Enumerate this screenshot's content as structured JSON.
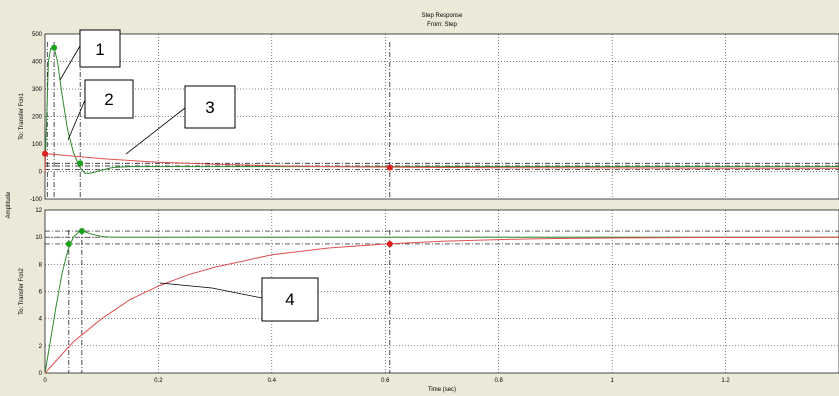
{
  "chart_data": {
    "type": "line",
    "title": "Step Response",
    "subtitle": "From: Step",
    "xlabel": "Time (sec)",
    "ylabel": "Amplitude",
    "xlim": [
      0,
      1.4
    ],
    "x_ticks": [
      "0",
      "0.2",
      "0.4",
      "0.6",
      "0.8",
      "1",
      "1.2"
    ],
    "grid": true,
    "colors": {
      "green": "#2e8b2e",
      "red": "#e05050",
      "marker_green": "#1aa01a",
      "marker_red": "#e02020"
    },
    "panels": [
      {
        "ylabel": "To: Transfer Fcn1",
        "ylim": [
          -100,
          500
        ],
        "y_ticks": [
          "500",
          "400",
          "300",
          "200",
          "100",
          "0",
          "-100"
        ],
        "y_tick_values": [
          500,
          400,
          300,
          200,
          100,
          0,
          -100
        ],
        "series": [
          {
            "color": "green",
            "x": [
              0,
              0.003,
              0.006,
              0.01,
              0.016,
              0.022,
              0.03,
              0.04,
              0.05,
              0.06,
              0.07,
              0.08,
              0.1,
              0.12,
              0.15,
              0.2,
              0.3,
              0.5,
              0.8,
              1.1,
              1.4
            ],
            "y": [
              0,
              200,
              400,
              448,
              450,
              400,
              280,
              150,
              70,
              20,
              -6,
              -6,
              5,
              15,
              18,
              18,
              18,
              18,
              18,
              18,
              18
            ]
          },
          {
            "color": "red",
            "x": [
              0,
              0.001,
              0.05,
              0.1,
              0.15,
              0.2,
              0.3,
              0.4,
              0.5,
              0.6,
              0.8,
              1.0,
              1.2,
              1.4
            ],
            "y": [
              0,
              65,
              56,
              47,
              40,
              34,
              26,
              21,
              18,
              16,
              14,
              13,
              12,
              12
            ]
          }
        ],
        "markers": [
          {
            "color": "marker_green",
            "x": 0.016,
            "y": 450
          },
          {
            "color": "marker_green",
            "x": 0.062,
            "y": 30
          },
          {
            "color": "marker_red",
            "x": 0.0,
            "y": 65
          },
          {
            "color": "marker_red",
            "x": 0.608,
            "y": 14
          }
        ],
        "h_refs": [
          30,
          20,
          8
        ],
        "v_refs": [
          0.004,
          0.016,
          0.062,
          0.608
        ]
      },
      {
        "ylabel": "To: Transfer Fcn2",
        "ylim": [
          0,
          12
        ],
        "y_ticks": [
          "12",
          "10",
          "8",
          "6",
          "4",
          "2",
          "0"
        ],
        "y_tick_values": [
          12,
          10,
          8,
          6,
          4,
          2,
          0
        ],
        "series": [
          {
            "color": "green",
            "x": [
              0,
              0.01,
              0.02,
              0.03,
              0.04,
              0.05,
              0.06,
              0.065,
              0.07,
              0.08,
              0.1,
              0.12,
              0.15,
              0.2,
              0.4,
              0.7,
              1.0,
              1.4
            ],
            "y": [
              0,
              2.5,
              5,
              7.3,
              9.0,
              10.0,
              10.4,
              10.45,
              10.4,
              10.25,
              10.05,
              10.0,
              10.0,
              10.0,
              10.0,
              10.0,
              10.0,
              10.0
            ]
          },
          {
            "color": "red",
            "x": [
              0,
              0.05,
              0.1,
              0.15,
              0.2,
              0.25,
              0.3,
              0.4,
              0.5,
              0.6,
              0.7,
              0.8,
              0.9,
              1.0,
              1.2,
              1.4
            ],
            "y": [
              0,
              2.3,
              4.0,
              5.4,
              6.4,
              7.2,
              7.8,
              8.7,
              9.2,
              9.5,
              9.7,
              9.82,
              9.9,
              9.94,
              9.98,
              10.0
            ]
          }
        ],
        "markers": [
          {
            "color": "marker_green",
            "x": 0.042,
            "y": 9.5
          },
          {
            "color": "marker_green",
            "x": 0.065,
            "y": 10.45
          },
          {
            "color": "marker_red",
            "x": 0.608,
            "y": 9.5
          }
        ],
        "h_refs": [
          10.45,
          10.0,
          9.5
        ],
        "v_refs": [
          0.042,
          0.065,
          0.608
        ]
      }
    ],
    "annotations": [
      "1",
      "2",
      "3",
      "4"
    ]
  }
}
